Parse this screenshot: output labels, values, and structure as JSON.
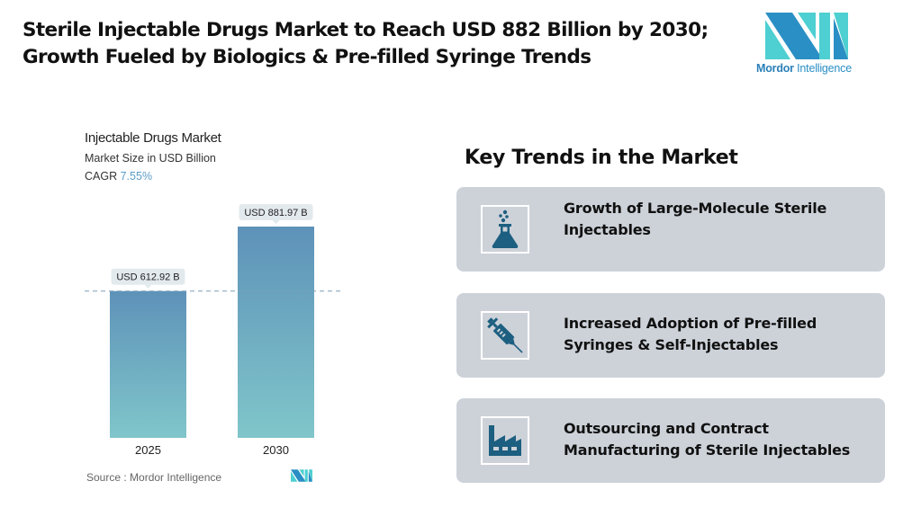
{
  "headline": {
    "line1": "Sterile Injectable Drugs Market to Reach USD 882 Billion by 2030;",
    "line2": "Growth Fueled by Biologics & Pre-filled Syringe Trends"
  },
  "logo": {
    "brand_bold": "Mordor",
    "brand_light": "Intelligence",
    "colors": {
      "dark": "#2a8fc4",
      "light": "#4ecfd1"
    }
  },
  "chart_data": {
    "type": "bar",
    "title": "Injectable Drugs Market",
    "subtitle": "Market Size in USD Billion",
    "cagr_label": "CAGR",
    "cagr_value": "7.55%",
    "categories": [
      "2025",
      "2030"
    ],
    "values": [
      612.92,
      881.97
    ],
    "data_labels": [
      "USD 612.92 B",
      "USD 881.97 B"
    ],
    "xlabel": "",
    "ylabel": "Market Size in USD Billion",
    "ylim": [
      0,
      882
    ],
    "grid": false,
    "reference_line": {
      "value": 612.92,
      "style": "dashed"
    },
    "colors": {
      "bar_top": "#5e92b9",
      "bar_bottom": "#7fc4c9",
      "label_bg": "#e3eaee",
      "ref_line": "#7b9fb8"
    }
  },
  "source": {
    "text": "Source :  Mordor Intelligence"
  },
  "trends": {
    "title": "Key Trends in the Market",
    "items": [
      {
        "icon": "flask-icon",
        "label": "Growth of Large-Molecule Sterile Injectables"
      },
      {
        "icon": "syringe-icon",
        "label": "Increased Adoption of Pre-filled Syringes & Self-Injectables"
      },
      {
        "icon": "factory-icon",
        "label": "Outsourcing and Contract Manufacturing of Sterile Injectables"
      }
    ],
    "colors": {
      "card_bg": "#cdd2d9",
      "icon": "#1d5f80"
    }
  }
}
